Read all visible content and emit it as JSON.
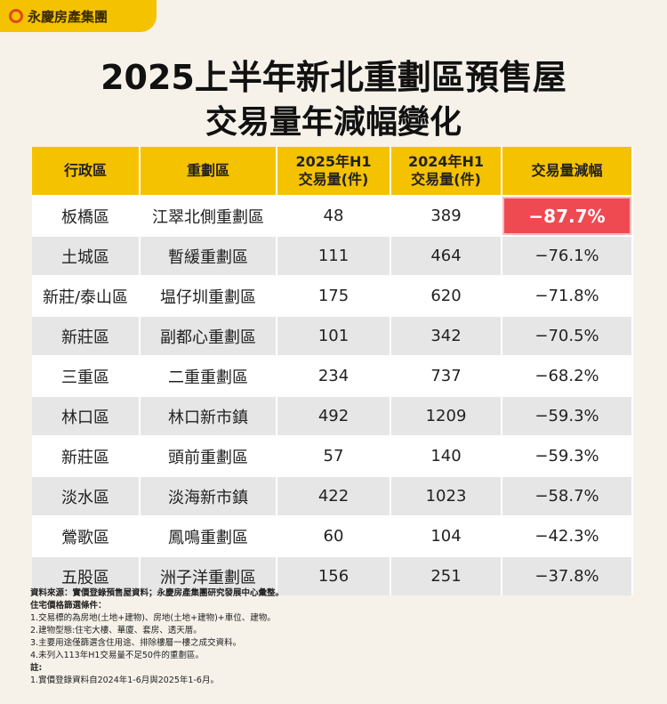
{
  "header": {
    "logo": "永慶房產集團",
    "title": [
      "2025上半年新北重劃區預售屋",
      "交易量年減幅變化"
    ]
  },
  "table": {
    "columns": [
      [
        "行政區"
      ],
      [
        "重劃區"
      ],
      [
        "2025年H1",
        "交易量(件)"
      ],
      [
        "2024年H1",
        "交易量(件)"
      ],
      [
        "交易量減幅"
      ]
    ],
    "rows": [
      [
        "板橋區",
        "江翠北側重劃區",
        48,
        389,
        "−87.7%"
      ],
      [
        "土城區",
        "暫緩重劃區",
        111,
        464,
        "−76.1%"
      ],
      [
        "新莊/泰山區",
        "塭仔圳重劃區",
        175,
        620,
        "−71.8%"
      ],
      [
        "新莊區",
        "副都心重劃區",
        101,
        342,
        "−70.5%"
      ],
      [
        "三重區",
        "二重重劃區",
        234,
        737,
        "−68.2%"
      ],
      [
        "林口區",
        "林口新市鎮",
        492,
        1209,
        "−59.3%"
      ],
      [
        "新莊區",
        "頭前重劃區",
        57,
        140,
        "−59.3%"
      ],
      [
        "淡水區",
        "淡海新市鎮",
        422,
        1023,
        "−58.7%"
      ],
      [
        "鶯歌區",
        "鳳鳴重劃區",
        60,
        104,
        "−42.3%"
      ],
      [
        "五股區",
        "洲子洋重劃區",
        156,
        251,
        "−37.8%"
      ]
    ]
  },
  "notes": {
    "source": "資料來源：實價登錄預售屋資料；永慶房產集團研究發展中心彙整。",
    "criteria_title": "住宅價格篩選條件：",
    "criteria": [
      "1.交易標的為房地(土地+建物)、房地(土地+建物)+車位、建物。",
      "2.建物型態:住宅大樓、華廈、套房、透天厝。",
      "3.主要用途僅篩選含住用途、排除樓層一樓之成交資料。",
      "4.未列入113年H1交易量不足50件的重劃區。"
    ],
    "remark_title": "註:",
    "remarks": [
      "1.實價登錄資料自2024年1-6月與2025年1-6月。"
    ]
  }
}
